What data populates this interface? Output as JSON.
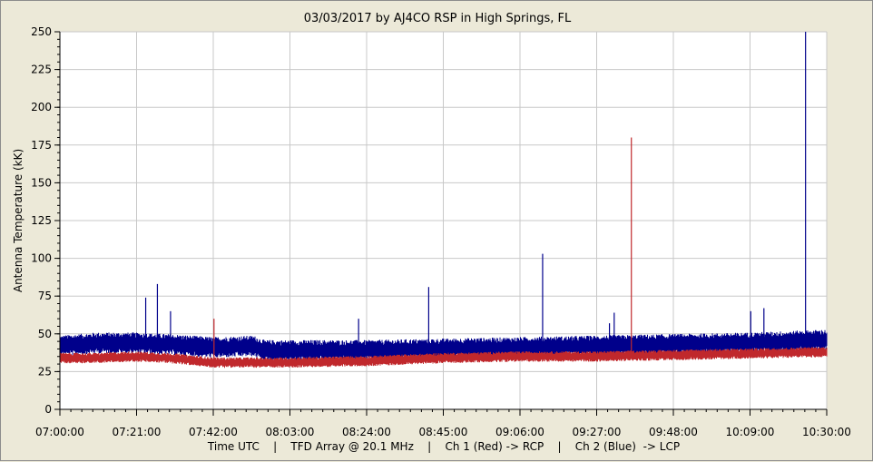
{
  "chart_data": {
    "type": "line",
    "title": "03/03/2017  by  AJ4CO RSP  in  High Springs, FL",
    "ylabel": "Antenna Temperature (kK)",
    "footer": "Time UTC    |    TFD Array @ 20.1 MHz    |    Ch 1 (Red) -> RCP    |    Ch 2 (Blue)  -> LCP",
    "ylim": [
      0,
      250
    ],
    "yticks": [
      0,
      25,
      50,
      75,
      100,
      125,
      150,
      175,
      200,
      225,
      250
    ],
    "xlim_minutes": [
      0,
      210
    ],
    "xticks": [
      {
        "minute": 0,
        "label": "07:00:00"
      },
      {
        "minute": 21,
        "label": "07:21:00"
      },
      {
        "minute": 42,
        "label": "07:42:00"
      },
      {
        "minute": 63,
        "label": "08:03:00"
      },
      {
        "minute": 84,
        "label": "08:24:00"
      },
      {
        "minute": 105,
        "label": "08:45:00"
      },
      {
        "minute": 126,
        "label": "09:06:00"
      },
      {
        "minute": 147,
        "label": "09:27:00"
      },
      {
        "minute": 168,
        "label": "09:48:00"
      },
      {
        "minute": 189,
        "label": "10:09:00"
      },
      {
        "minute": 210,
        "label": "10:30:00"
      }
    ],
    "grid": true,
    "series": [
      {
        "name": "Ch 1 (Red) -> RCP",
        "color": "#c0282c",
        "center": [
          {
            "minute": 0,
            "value": 34
          },
          {
            "minute": 10,
            "value": 34
          },
          {
            "minute": 20,
            "value": 35
          },
          {
            "minute": 30,
            "value": 34
          },
          {
            "minute": 42,
            "value": 31
          },
          {
            "minute": 55,
            "value": 31
          },
          {
            "minute": 63,
            "value": 31
          },
          {
            "minute": 84,
            "value": 32
          },
          {
            "minute": 105,
            "value": 34
          },
          {
            "minute": 126,
            "value": 35
          },
          {
            "minute": 147,
            "value": 35
          },
          {
            "minute": 168,
            "value": 36
          },
          {
            "minute": 189,
            "value": 37
          },
          {
            "minute": 210,
            "value": 38
          }
        ],
        "spread": 3,
        "spikes": [
          {
            "minute": 42.2,
            "value": 60
          },
          {
            "minute": 156.5,
            "value": 180
          }
        ]
      },
      {
        "name": "Ch 2 (Blue) -> LCP",
        "color": "#00008b",
        "center": [
          {
            "minute": 0,
            "value": 42
          },
          {
            "minute": 10,
            "value": 44
          },
          {
            "minute": 20,
            "value": 44
          },
          {
            "minute": 30,
            "value": 43
          },
          {
            "minute": 42,
            "value": 41
          },
          {
            "minute": 53,
            "value": 42
          },
          {
            "minute": 56,
            "value": 39
          },
          {
            "minute": 63,
            "value": 39
          },
          {
            "minute": 84,
            "value": 39
          },
          {
            "minute": 105,
            "value": 40
          },
          {
            "minute": 126,
            "value": 41
          },
          {
            "minute": 147,
            "value": 42
          },
          {
            "minute": 168,
            "value": 43
          },
          {
            "minute": 189,
            "value": 44
          },
          {
            "minute": 210,
            "value": 46
          }
        ],
        "spread": 6,
        "spikes": [
          {
            "minute": 23.5,
            "value": 74
          },
          {
            "minute": 26.7,
            "value": 83
          },
          {
            "minute": 30.3,
            "value": 65
          },
          {
            "minute": 81.8,
            "value": 60
          },
          {
            "minute": 101.0,
            "value": 81
          },
          {
            "minute": 132.2,
            "value": 103
          },
          {
            "minute": 150.5,
            "value": 57
          },
          {
            "minute": 151.8,
            "value": 64
          },
          {
            "minute": 189.2,
            "value": 65
          },
          {
            "minute": 192.8,
            "value": 67
          },
          {
            "minute": 204.2,
            "value": 250
          }
        ]
      }
    ]
  }
}
